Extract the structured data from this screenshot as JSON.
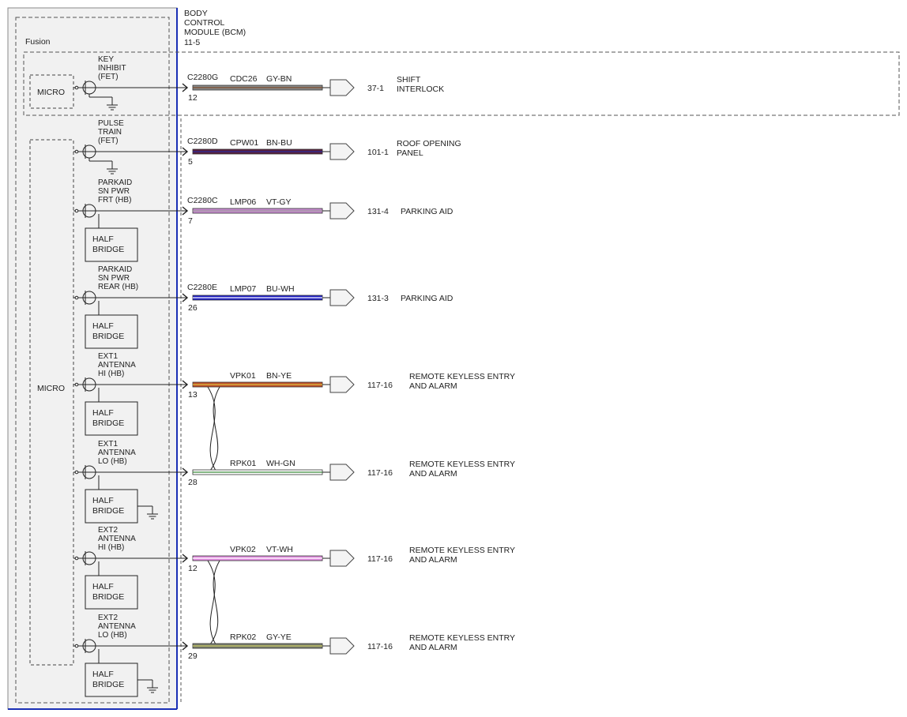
{
  "module": {
    "title_lines": [
      "BODY",
      "CONTROL",
      "MODULE (BCM)",
      "11-5"
    ],
    "variant_label": "Fusion",
    "border_color": "#1a2fb5"
  },
  "micro_labels": {
    "top": "MICRO",
    "main": "MICRO"
  },
  "half_bridge_label": [
    "HALF",
    "BRIDGE"
  ],
  "circuits": [
    {
      "id": "key-inhibit",
      "label_lines": [
        "KEY",
        "INHIBIT",
        "(FET)"
      ],
      "connector": "C2280G",
      "pin": "12",
      "circuit": "CDC26",
      "color_code": "GY-BN",
      "wire_color": "#8a8a8a",
      "stripe_color": "#7a4a2a",
      "dest": "37-1",
      "dest_lines": [
        "SHIFT",
        "INTERLOCK"
      ],
      "half_bridge": false,
      "twisted_with_next": false
    },
    {
      "id": "pulse-train",
      "label_lines": [
        "PULSE",
        "TRAIN",
        "(FET)"
      ],
      "connector": "C2280D",
      "pin": "5",
      "circuit": "CPW01",
      "color_code": "BN-BU",
      "wire_color": "#5a1f3c",
      "stripe_color": "#2a2a9a",
      "dest": "101-1",
      "dest_lines": [
        "ROOF OPENING",
        "PANEL"
      ],
      "half_bridge": false,
      "twisted_with_next": false
    },
    {
      "id": "parkaid-front",
      "label_lines": [
        "PARKAID",
        "SN PWR",
        "FRT (HB)"
      ],
      "connector": "C2280C",
      "pin": "7",
      "circuit": "LMP06",
      "color_code": "VT-GY",
      "wire_color": "#c98bd1",
      "stripe_color": "#9a9a9a",
      "dest": "131-4",
      "dest_lines": [
        "PARKING AID"
      ],
      "half_bridge": true,
      "twisted_with_next": false
    },
    {
      "id": "parkaid-rear",
      "label_lines": [
        "PARKAID",
        "SN PWR",
        "REAR (HB)"
      ],
      "connector": "C2280E",
      "pin": "26",
      "circuit": "LMP07",
      "color_code": "BU-WH",
      "wire_color": "#2323c8",
      "stripe_color": "#ffffff",
      "dest": "131-3",
      "dest_lines": [
        "PARKING AID"
      ],
      "half_bridge": true,
      "twisted_with_next": false
    },
    {
      "id": "ext1-hi",
      "label_lines": [
        "EXT1",
        "ANTENNA",
        "HI (HB)"
      ],
      "connector": "",
      "pin": "13",
      "circuit": "VPK01",
      "color_code": "BN-YE",
      "wire_color": "#c0502a",
      "stripe_color": "#d8c040",
      "dest": "117-16",
      "dest_lines": [
        "REMOTE KEYLESS ENTRY",
        "AND ALARM"
      ],
      "half_bridge": true,
      "twisted_with_next": true
    },
    {
      "id": "ext1-lo",
      "label_lines": [
        "EXT1",
        "ANTENNA",
        "LO (HB)"
      ],
      "connector": "",
      "pin": "28",
      "circuit": "RPK01",
      "color_code": "WH-GN",
      "wire_color": "#ffffff",
      "stripe_color": "#3a8a3a",
      "dest": "117-16",
      "dest_lines": [
        "REMOTE KEYLESS ENTRY",
        "AND ALARM"
      ],
      "half_bridge": true,
      "twisted_with_next": false,
      "hb_ground": true
    },
    {
      "id": "ext2-hi",
      "label_lines": [
        "EXT2",
        "ANTENNA",
        "HI (HB)"
      ],
      "connector": "",
      "pin": "12",
      "circuit": "VPK02",
      "color_code": "VT-WH",
      "wire_color": "#e28ee0",
      "stripe_color": "#ffffff",
      "dest": "117-16",
      "dest_lines": [
        "REMOTE KEYLESS ENTRY",
        "AND ALARM"
      ],
      "half_bridge": true,
      "twisted_with_next": true
    },
    {
      "id": "ext2-lo",
      "label_lines": [
        "EXT2",
        "ANTENNA",
        "LO (HB)"
      ],
      "connector": "",
      "pin": "29",
      "circuit": "RPK02",
      "color_code": "GY-YE",
      "wire_color": "#7a7f6e",
      "stripe_color": "#c8c860",
      "dest": "117-16",
      "dest_lines": [
        "REMOTE KEYLESS ENTRY",
        "AND ALARM"
      ],
      "half_bridge": true,
      "twisted_with_next": false,
      "hb_ground": true
    }
  ]
}
